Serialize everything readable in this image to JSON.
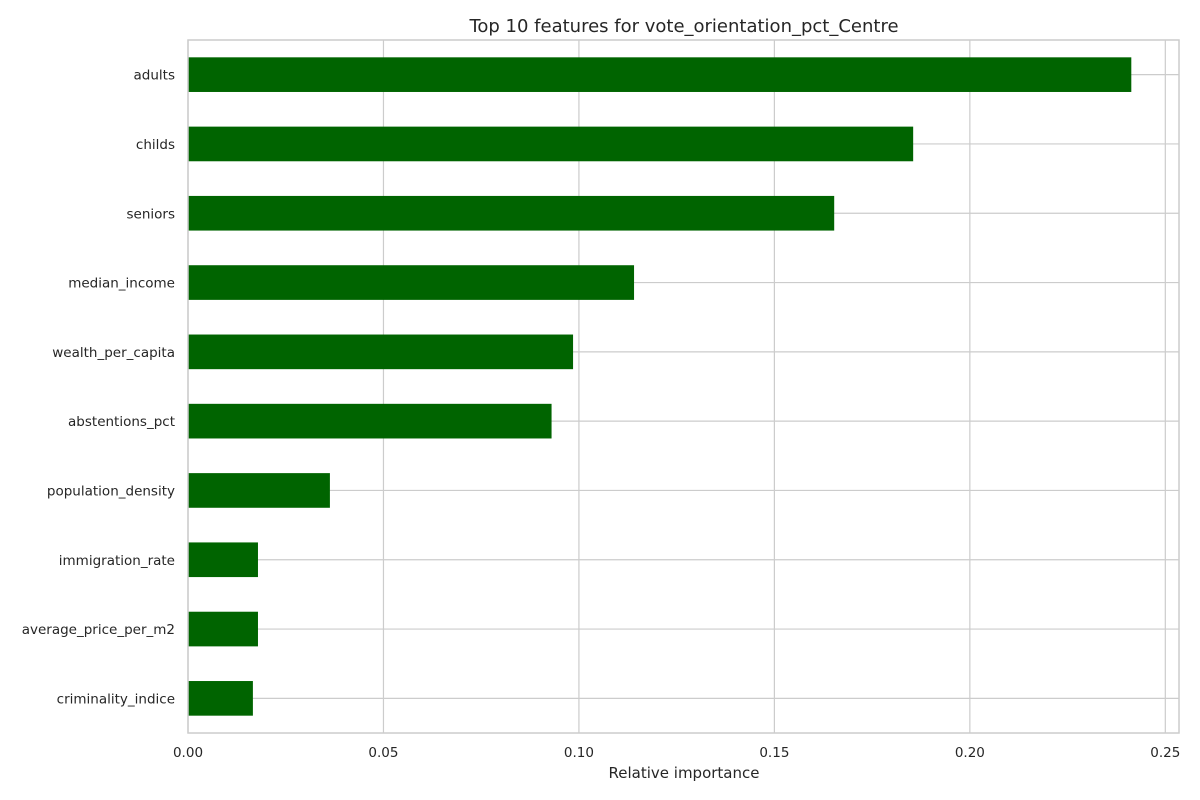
{
  "chart_data": {
    "type": "bar",
    "orientation": "horizontal",
    "title": "Top 10 features for vote_orientation_pct_Centre",
    "xlabel": "Relative importance",
    "ylabel": "",
    "categories": [
      "adults",
      "childs",
      "seniors",
      "median_income",
      "wealth_per_capita",
      "abstentions_pct",
      "population_density",
      "immigration_rate",
      "average_price_per_m2",
      "criminality_indice"
    ],
    "values": [
      0.2413,
      0.1855,
      0.1653,
      0.1141,
      0.0985,
      0.093,
      0.0363,
      0.0179,
      0.0179,
      0.0166
    ],
    "xlim": [
      0,
      0.2535
    ],
    "xticks": [
      0.0,
      0.05,
      0.1,
      0.15,
      0.2,
      0.25
    ],
    "xtick_labels": [
      "0.00",
      "0.05",
      "0.10",
      "0.15",
      "0.20",
      "0.25"
    ],
    "grid": true,
    "legend": "none",
    "bar_color": "#006400",
    "grid_color": "#cccccc",
    "spine_color": "#cccccc"
  }
}
